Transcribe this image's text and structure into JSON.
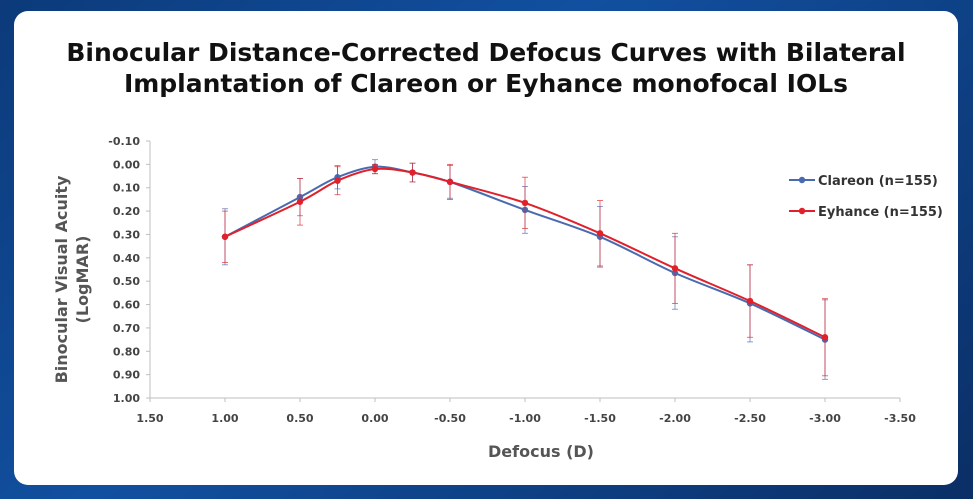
{
  "chart_data": {
    "type": "line",
    "title_line1": "Binocular Distance-Corrected Defocus Curves with Bilateral",
    "title_line2": "Implantation of Clareon or Eyhance monofocal IOLs",
    "xlabel": "Defocus (D)",
    "ylabel_line1": "Binocular Visual Acuity",
    "ylabel_line2": "(LogMAR)",
    "x_ticks": [
      "1.50",
      "1.00",
      "0.50",
      "0.00",
      "-0.50",
      "-1.00",
      "-1.50",
      "-2.00",
      "-2.50",
      "-3.00",
      "-3.50"
    ],
    "y_ticks": [
      "-0.10",
      "0.00",
      "0.10",
      "0.20",
      "0.30",
      "0.40",
      "0.50",
      "0.60",
      "0.70",
      "0.80",
      "0.90",
      "1.00"
    ],
    "xlim": [
      1.5,
      -3.5
    ],
    "ylim": [
      -0.1,
      1.0
    ],
    "y_inverted": true,
    "legend_position": "right",
    "series": [
      {
        "name": "Clareon (n=155)",
        "color": "#4a6ab0",
        "x": [
          1.0,
          0.5,
          0.25,
          0.0,
          -0.25,
          -0.5,
          -1.0,
          -1.5,
          -2.0,
          -2.5,
          -3.0
        ],
        "y": [
          0.31,
          0.14,
          0.055,
          0.01,
          0.035,
          0.075,
          0.195,
          0.31,
          0.465,
          0.595,
          0.75
        ],
        "err": [
          0.12,
          0.08,
          0.05,
          0.03,
          0.04,
          0.07,
          0.1,
          0.13,
          0.155,
          0.165,
          0.17
        ]
      },
      {
        "name": "Eyhance (n=155)",
        "color": "#e0202a",
        "x": [
          1.0,
          0.5,
          0.25,
          0.0,
          -0.25,
          -0.5,
          -1.0,
          -1.5,
          -2.0,
          -2.5,
          -3.0
        ],
        "y": [
          0.31,
          0.16,
          0.07,
          0.02,
          0.035,
          0.075,
          0.165,
          0.295,
          0.445,
          0.585,
          0.74
        ],
        "err": [
          0.11,
          0.1,
          0.06,
          0.02,
          0.04,
          0.075,
          0.11,
          0.14,
          0.15,
          0.155,
          0.165
        ]
      }
    ]
  }
}
